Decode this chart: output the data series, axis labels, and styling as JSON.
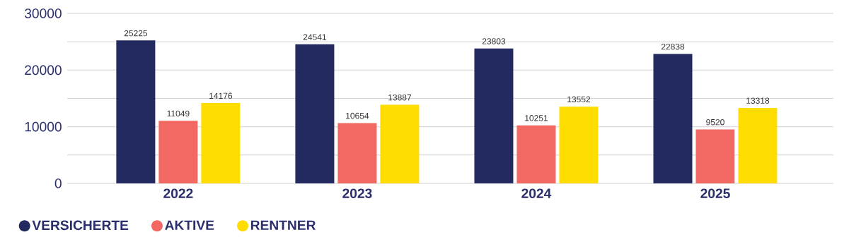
{
  "chart_data": {
    "type": "bar",
    "categories": [
      "2022",
      "2023",
      "2024",
      "2025"
    ],
    "series": [
      {
        "name": "VERSICHERTE",
        "color": "#222a60",
        "values": [
          25225,
          24541,
          23803,
          22838
        ]
      },
      {
        "name": "AKTIVE",
        "color": "#f26964",
        "values": [
          11049,
          10654,
          10251,
          9520
        ]
      },
      {
        "name": "RENTNER",
        "color": "#ffdd00",
        "values": [
          14176,
          13887,
          13552,
          13318
        ]
      }
    ],
    "ylim": [
      0,
      30000
    ],
    "yticks": [
      0,
      {
        "value": 5000,
        "label": null
      },
      10000,
      {
        "value": 15000,
        "label": null
      },
      20000,
      {
        "value": 25000,
        "label": null
      },
      30000
    ],
    "grid": "y",
    "legend": "bottom left",
    "data_labels": true
  }
}
